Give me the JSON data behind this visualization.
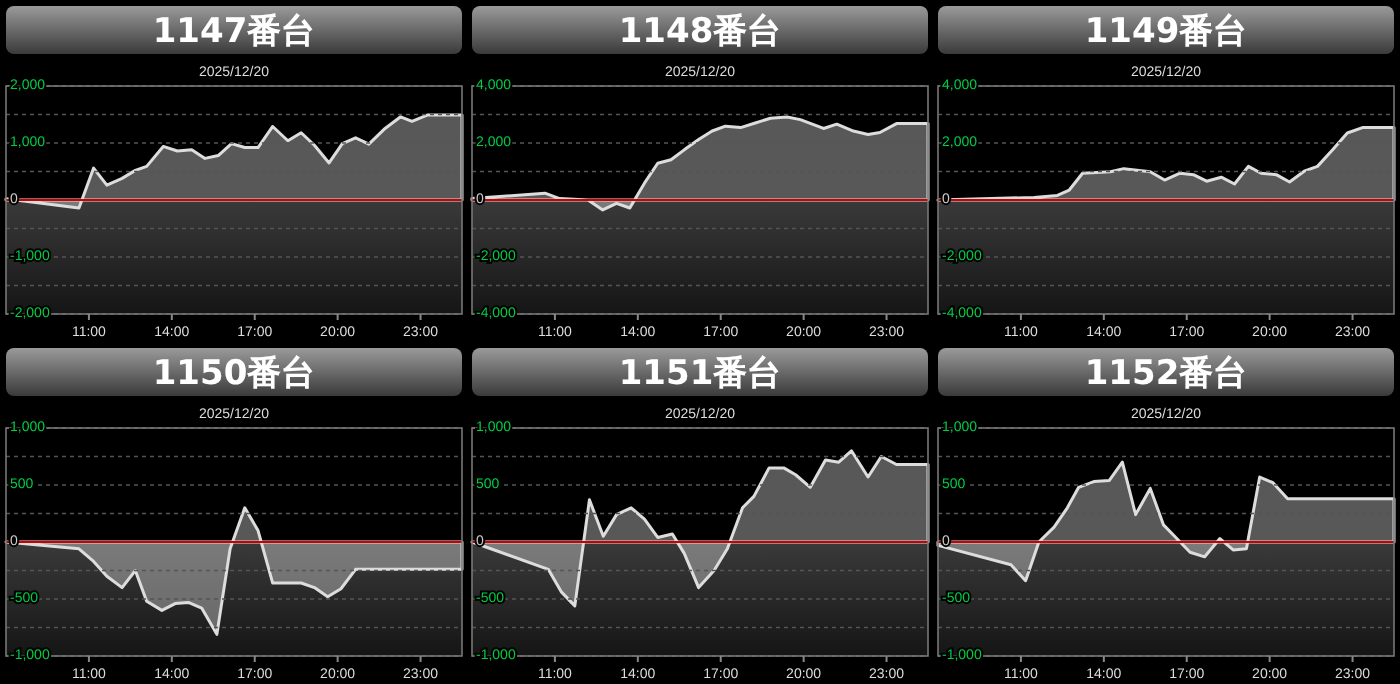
{
  "chart_data": [
    {
      "type": "area",
      "title": "1147番台",
      "subtitle": "2025/12/20",
      "xlim": [
        8,
        24.5
      ],
      "xticks": [
        {
          "value": 11,
          "label": "11:00"
        },
        {
          "value": 14,
          "label": "14:00"
        },
        {
          "value": 17,
          "label": "17:00"
        },
        {
          "value": 20,
          "label": "20:00"
        },
        {
          "value": 23,
          "label": "23:00"
        }
      ],
      "ylim": [
        -2000,
        2000
      ],
      "yticks": [
        {
          "value": -2000,
          "label": "-2,000"
        },
        {
          "value": -1500,
          "label": null
        },
        {
          "value": -1000,
          "label": "-1,000"
        },
        {
          "value": -500,
          "label": null
        },
        0,
        {
          "value": 500,
          "label": null
        },
        {
          "value": 1000,
          "label": "1,000"
        },
        {
          "value": 1500,
          "label": null
        },
        {
          "value": 2000,
          "label": "2,000"
        }
      ],
      "grid": "y",
      "ref_lines": [
        {
          "axis": "y",
          "value": 0,
          "color": "#cc0000"
        }
      ],
      "x": [
        8,
        10.64,
        11.17,
        11.65,
        12.2,
        12.68,
        13.09,
        13.69,
        14.2,
        14.72,
        15.2,
        15.68,
        16.16,
        16.64,
        17.12,
        17.65,
        18.2,
        18.68,
        19.16,
        19.69,
        20.17,
        20.65,
        21.13,
        21.68,
        22.28,
        22.69,
        23.24,
        24.5
      ],
      "series": [
        {
          "color": "#dddddd",
          "values": [
            20,
            -140,
            560,
            260,
            380,
            520,
            590,
            940,
            860,
            880,
            730,
            780,
            990,
            920,
            920,
            1290,
            1040,
            1180,
            960,
            650,
            990,
            1090,
            980,
            1240,
            1460,
            1380,
            1490,
            1490
          ]
        }
      ]
    },
    {
      "type": "area",
      "title": "1148番台",
      "subtitle": "2025/12/20",
      "xlim": [
        8,
        24.5
      ],
      "xticks": [
        {
          "value": 11,
          "label": "11:00"
        },
        {
          "value": 14,
          "label": "14:00"
        },
        {
          "value": 17,
          "label": "17:00"
        },
        {
          "value": 20,
          "label": "20:00"
        },
        {
          "value": 23,
          "label": "23:00"
        }
      ],
      "ylim": [
        -4000,
        4000
      ],
      "yticks": [
        {
          "value": -4000,
          "label": "-4,000"
        },
        {
          "value": -3000,
          "label": null
        },
        {
          "value": -2000,
          "label": "-2,000"
        },
        {
          "value": -1000,
          "label": null
        },
        0,
        {
          "value": 1000,
          "label": null
        },
        {
          "value": 2000,
          "label": "2,000"
        },
        {
          "value": 3000,
          "label": null
        },
        {
          "value": 4000,
          "label": "4,000"
        }
      ],
      "grid": "y",
      "ref_lines": [
        {
          "axis": "y",
          "value": 0,
          "color": "#cc0000"
        }
      ],
      "x": [
        8,
        10.64,
        11.17,
        12.2,
        12.73,
        13.23,
        13.71,
        14.24,
        14.72,
        15.2,
        15.68,
        16.2,
        16.69,
        17.17,
        17.72,
        18.25,
        18.8,
        19.4,
        19.88,
        20.72,
        21.2,
        21.8,
        22.33,
        22.76,
        23.36,
        24.5
      ],
      "series": [
        {
          "color": "#dddddd",
          "values": [
            50,
            240,
            50,
            0,
            -350,
            -120,
            -280,
            590,
            1290,
            1410,
            1760,
            2120,
            2420,
            2590,
            2540,
            2700,
            2870,
            2910,
            2820,
            2510,
            2660,
            2420,
            2300,
            2370,
            2680,
            2680
          ]
        }
      ]
    },
    {
      "type": "area",
      "title": "1149番台",
      "subtitle": "2025/12/20",
      "xlim": [
        8,
        24.5
      ],
      "xticks": [
        {
          "value": 11,
          "label": "11:00"
        },
        {
          "value": 14,
          "label": "14:00"
        },
        {
          "value": 17,
          "label": "17:00"
        },
        {
          "value": 20,
          "label": "20:00"
        },
        {
          "value": 23,
          "label": "23:00"
        }
      ],
      "ylim": [
        -4000,
        4000
      ],
      "yticks": [
        {
          "value": -4000,
          "label": "-4,000"
        },
        {
          "value": -3000,
          "label": null
        },
        {
          "value": -2000,
          "label": "-2,000"
        },
        {
          "value": -1000,
          "label": null
        },
        0,
        {
          "value": 1000,
          "label": null
        },
        {
          "value": 2000,
          "label": "2,000"
        },
        {
          "value": 3000,
          "label": null
        },
        {
          "value": 4000,
          "label": "4,000"
        }
      ],
      "grid": "y",
      "ref_lines": [
        {
          "axis": "y",
          "value": 0,
          "color": "#cc0000"
        }
      ],
      "x": [
        8,
        11.48,
        12.32,
        12.75,
        13.23,
        14.24,
        14.72,
        15.68,
        16.2,
        16.76,
        17.24,
        17.72,
        18.25,
        18.73,
        19.23,
        19.69,
        20.24,
        20.72,
        21.25,
        21.73,
        22.28,
        22.81,
        23.36,
        24.5
      ],
      "series": [
        {
          "color": "#dddddd",
          "values": [
            0,
            90,
            160,
            350,
            940,
            990,
            1100,
            990,
            700,
            940,
            890,
            660,
            800,
            560,
            1180,
            940,
            890,
            630,
            1010,
            1180,
            1760,
            2350,
            2540,
            2540
          ]
        }
      ]
    },
    {
      "type": "area",
      "title": "1150番台",
      "subtitle": "2025/12/20",
      "xlim": [
        8,
        24.5
      ],
      "xticks": [
        {
          "value": 11,
          "label": "11:00"
        },
        {
          "value": 14,
          "label": "14:00"
        },
        {
          "value": 17,
          "label": "17:00"
        },
        {
          "value": 20,
          "label": "20:00"
        },
        {
          "value": 23,
          "label": "23:00"
        }
      ],
      "ylim": [
        -1000,
        1000
      ],
      "yticks": [
        {
          "value": -1000,
          "label": "-1,000"
        },
        {
          "value": -750,
          "label": null
        },
        -500,
        {
          "value": -250,
          "label": null
        },
        0,
        {
          "value": 250,
          "label": null
        },
        500,
        {
          "value": 750,
          "label": null
        },
        {
          "value": 1000,
          "label": "1,000"
        }
      ],
      "grid": "y",
      "ref_lines": [
        {
          "axis": "y",
          "value": 0,
          "color": "#cc0000"
        }
      ],
      "x": [
        8,
        10.64,
        11.17,
        11.65,
        12.2,
        12.68,
        13.09,
        13.64,
        14.12,
        14.6,
        15.08,
        15.63,
        16.11,
        16.64,
        17.12,
        17.65,
        18.68,
        19.16,
        19.64,
        20.12,
        20.65,
        24.5
      ],
      "series": [
        {
          "color": "#dddddd",
          "values": [
            0,
            -60,
            -170,
            -300,
            -400,
            -250,
            -520,
            -600,
            -540,
            -530,
            -580,
            -810,
            -60,
            300,
            100,
            -360,
            -360,
            -400,
            -480,
            -410,
            -240,
            -240
          ]
        }
      ]
    },
    {
      "type": "area",
      "title": "1151番台",
      "subtitle": "2025/12/20",
      "xlim": [
        8,
        24.5
      ],
      "xticks": [
        {
          "value": 11,
          "label": "11:00"
        },
        {
          "value": 14,
          "label": "14:00"
        },
        {
          "value": 17,
          "label": "17:00"
        },
        {
          "value": 20,
          "label": "20:00"
        },
        {
          "value": 23,
          "label": "23:00"
        }
      ],
      "ylim": [
        -1000,
        1000
      ],
      "yticks": [
        {
          "value": -1000,
          "label": "-1,000"
        },
        {
          "value": -750,
          "label": null
        },
        -500,
        {
          "value": -250,
          "label": null
        },
        0,
        {
          "value": 250,
          "label": null
        },
        500,
        {
          "value": 750,
          "label": null
        },
        {
          "value": 1000,
          "label": "1,000"
        }
      ],
      "grid": "y",
      "ref_lines": [
        {
          "axis": "y",
          "value": 0,
          "color": "#cc0000"
        }
      ],
      "x": [
        8,
        10.76,
        11.24,
        11.72,
        12.25,
        12.75,
        13.23,
        13.76,
        14.24,
        14.72,
        15.25,
        15.68,
        16.2,
        16.76,
        17.24,
        17.79,
        18.2,
        18.75,
        19.28,
        19.71,
        20.24,
        20.79,
        21.27,
        21.73,
        22.33,
        22.81,
        23.36,
        24.5
      ],
      "series": [
        {
          "color": "#dddddd",
          "values": [
            0,
            -240,
            -440,
            -560,
            370,
            50,
            240,
            300,
            200,
            40,
            70,
            -100,
            -400,
            -250,
            -60,
            300,
            400,
            650,
            650,
            590,
            480,
            720,
            700,
            800,
            570,
            750,
            680,
            680
          ]
        }
      ]
    },
    {
      "type": "area",
      "title": "1152番台",
      "subtitle": "2025/12/20",
      "xlim": [
        8,
        24.5
      ],
      "xticks": [
        {
          "value": 11,
          "label": "11:00"
        },
        {
          "value": 14,
          "label": "14:00"
        },
        {
          "value": 17,
          "label": "17:00"
        },
        {
          "value": 20,
          "label": "20:00"
        },
        {
          "value": 23,
          "label": "23:00"
        }
      ],
      "ylim": [
        -1000,
        1000
      ],
      "yticks": [
        {
          "value": -1000,
          "label": "-1,000"
        },
        {
          "value": -750,
          "label": null
        },
        -500,
        {
          "value": -250,
          "label": null
        },
        0,
        {
          "value": 250,
          "label": null
        },
        500,
        {
          "value": 750,
          "label": null
        },
        {
          "value": 1000,
          "label": "1,000"
        }
      ],
      "grid": "y",
      "ref_lines": [
        {
          "axis": "y",
          "value": 0,
          "color": "#cc0000"
        }
      ],
      "x": [
        8,
        10.64,
        11.17,
        11.65,
        12.2,
        12.68,
        13.09,
        13.64,
        14.2,
        14.67,
        15.15,
        15.68,
        16.16,
        16.64,
        17.12,
        17.65,
        18.2,
        18.68,
        19.16,
        19.64,
        20.12,
        20.65,
        24.5
      ],
      "series": [
        {
          "color": "#dddddd",
          "values": [
            -30,
            -200,
            -340,
            0,
            130,
            300,
            480,
            530,
            540,
            700,
            240,
            470,
            150,
            30,
            -90,
            -130,
            30,
            -70,
            -60,
            570,
            520,
            380,
            380
          ]
        }
      ]
    }
  ]
}
